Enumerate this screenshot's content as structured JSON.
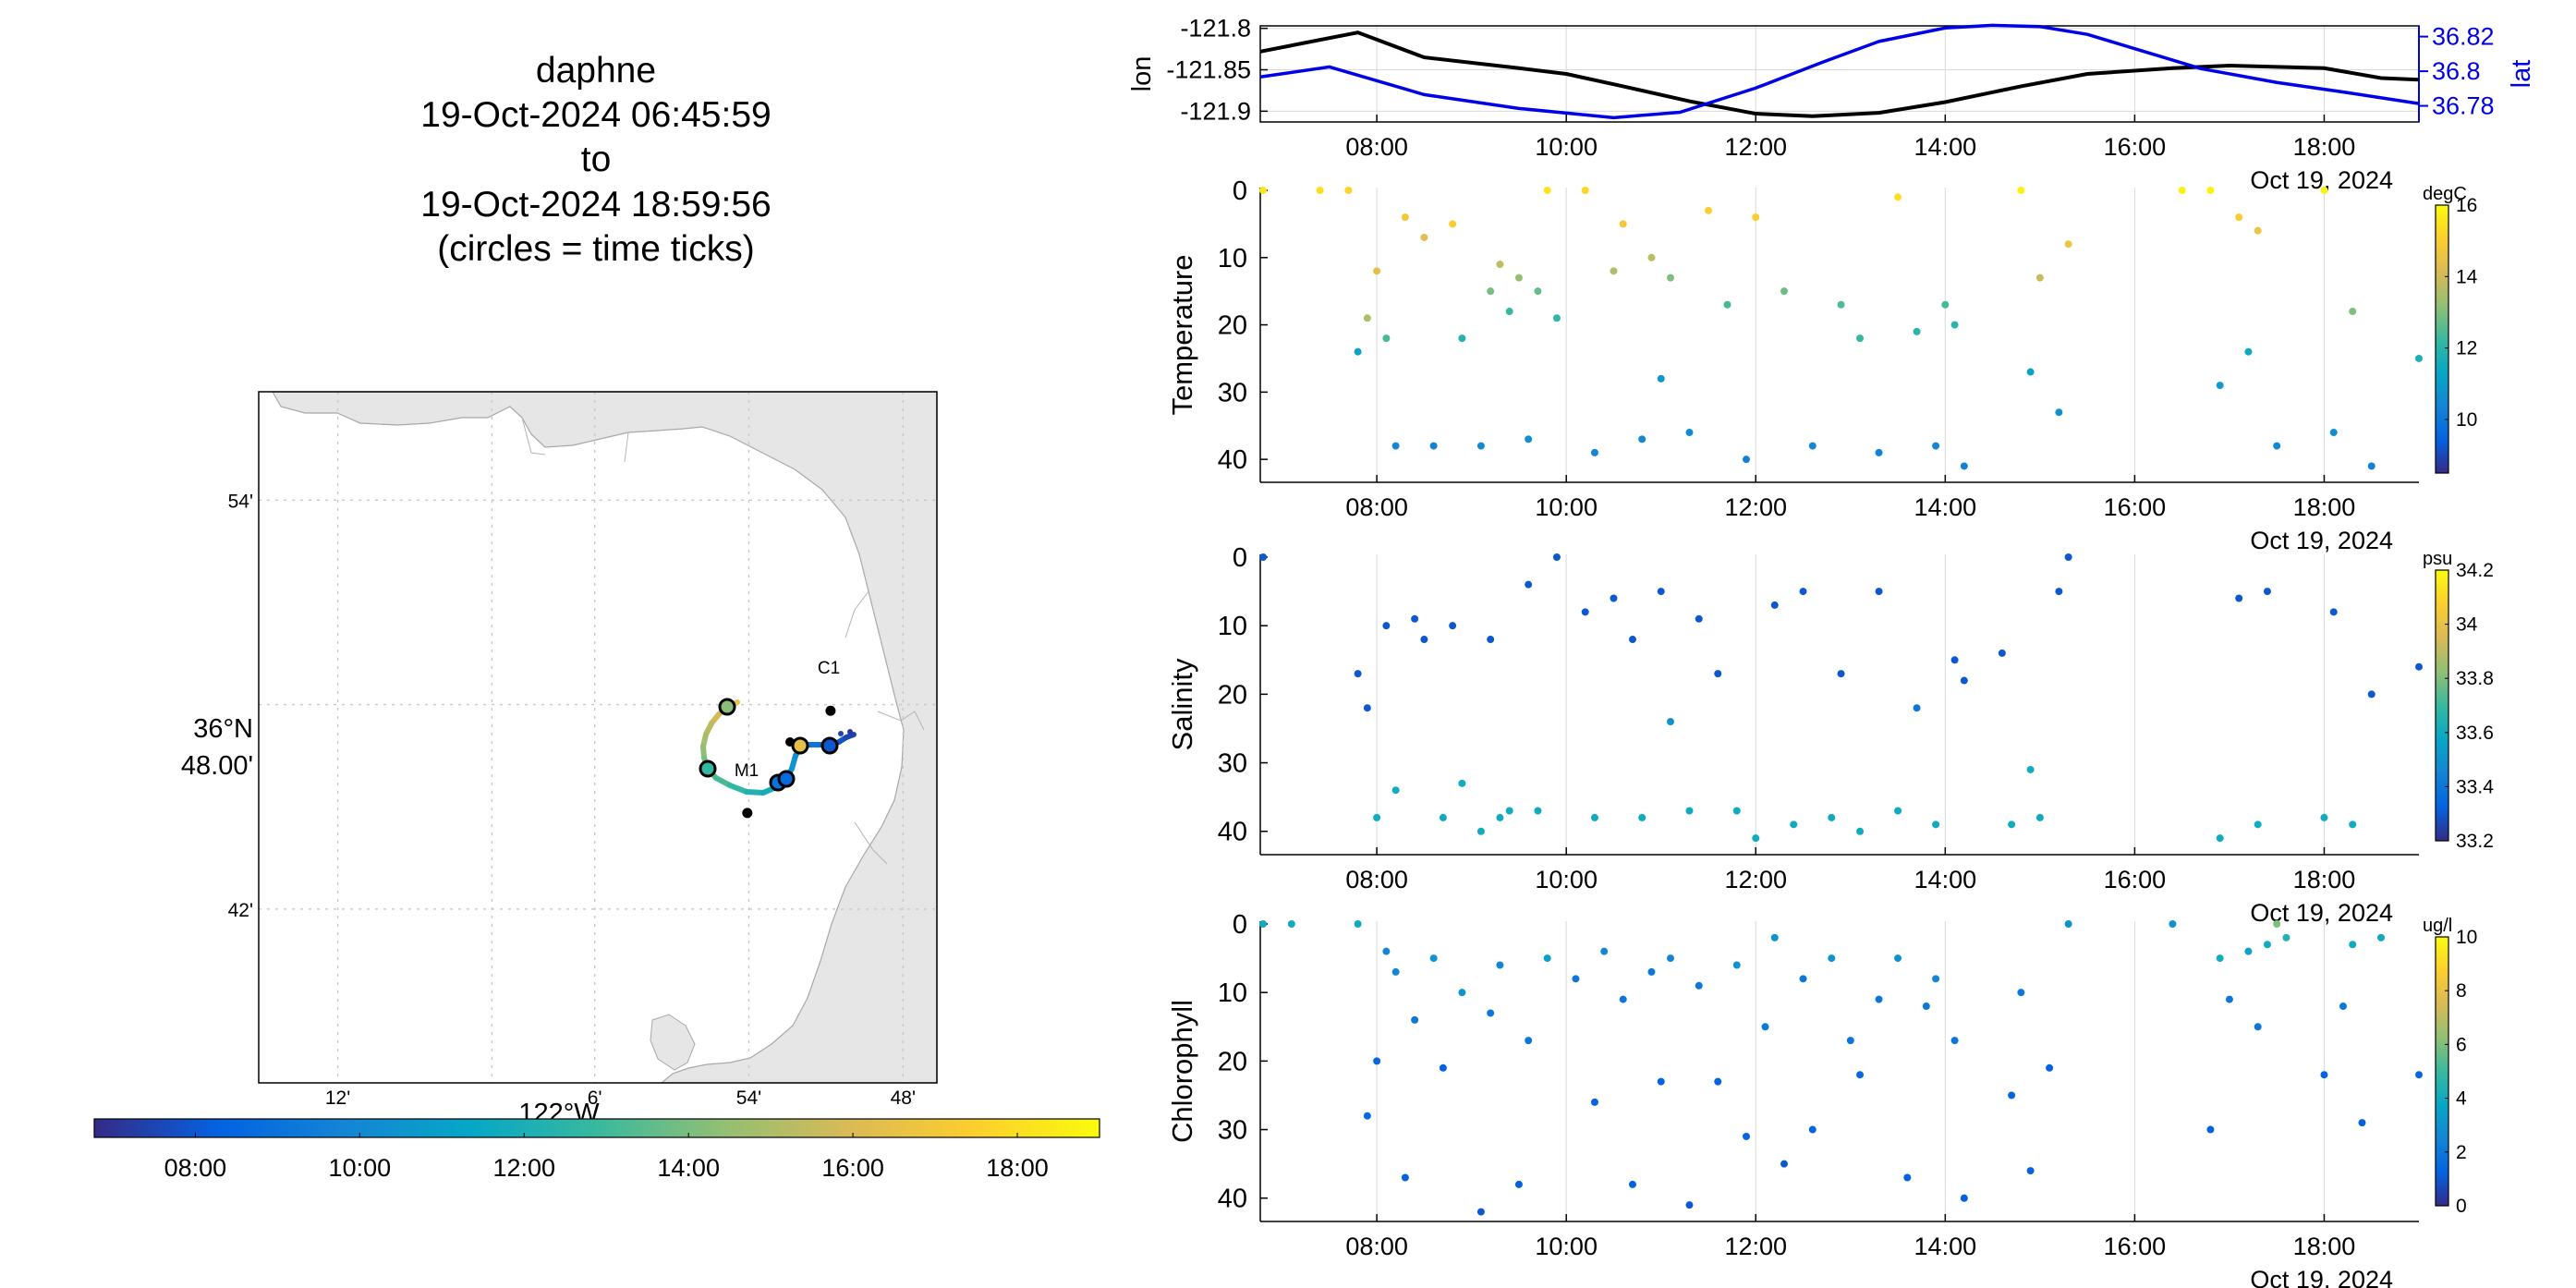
{
  "title": {
    "platform": "daphne",
    "start": "19-Oct-2024 06:45:59",
    "to": "to",
    "end": "19-Oct-2024 18:59:56",
    "note": "(circles = time ticks)"
  },
  "colors": {
    "lon_line": "#000000",
    "lat_line": "#0000e6",
    "land": "#e6e6e6",
    "grid": "#c8c8c8",
    "parula": [
      "#352a87",
      "#0363e1",
      "#1485d4",
      "#06a7c6",
      "#38b99e",
      "#92bf73",
      "#d9ba56",
      "#fcce2e",
      "#f9fb0e"
    ]
  },
  "chart_data": [
    {
      "type": "line",
      "name": "position",
      "xlabel": "Oct 19, 2024",
      "xticks": [
        "08:00",
        "10:00",
        "12:00",
        "14:00",
        "16:00",
        "18:00"
      ],
      "ylabel": "lon",
      "ylabel_right": "lat",
      "yticks_left": [
        "-121.8",
        "-121.85",
        "-121.9"
      ],
      "yticks_right": [
        "36.82",
        "36.8",
        "36.78"
      ],
      "x_range_hours": [
        6.77,
        19.0
      ],
      "ylim_left": [
        -121.913,
        -121.797
      ],
      "ylim_right": [
        36.7707,
        36.8262
      ],
      "series": [
        {
          "name": "lon",
          "x": [
            6.77,
            7.8,
            8.5,
            9.5,
            10.0,
            10.6,
            11.3,
            12.0,
            12.6,
            13.3,
            14.0,
            14.8,
            15.5,
            16.4,
            17.0,
            18.0,
            18.6,
            19.0
          ],
          "y": [
            -121.828,
            -121.805,
            -121.835,
            -121.848,
            -121.855,
            -121.87,
            -121.888,
            -121.903,
            -121.906,
            -121.902,
            -121.889,
            -121.87,
            -121.855,
            -121.848,
            -121.845,
            -121.848,
            -121.86,
            -121.862
          ]
        },
        {
          "name": "lat",
          "x": [
            6.77,
            7.5,
            8.5,
            9.5,
            10.5,
            11.2,
            12.0,
            12.7,
            13.3,
            14.0,
            14.5,
            15.0,
            15.5,
            16.0,
            16.7,
            17.5,
            18.3,
            19.0
          ],
          "y": [
            36.7967,
            36.8025,
            36.7865,
            36.7785,
            36.7732,
            36.7763,
            36.7903,
            36.8051,
            36.8172,
            36.825,
            36.8265,
            36.8258,
            36.8213,
            36.813,
            36.8015,
            36.7935,
            36.7872,
            36.7813
          ]
        }
      ]
    },
    {
      "type": "scatter",
      "name": "temperature",
      "ylabel": "Temperature",
      "xlabel": "Oct 19, 2024",
      "xticks": [
        "08:00",
        "10:00",
        "12:00",
        "14:00",
        "16:00",
        "18:00"
      ],
      "yticks": [
        "0",
        "10",
        "20",
        "30",
        "40"
      ],
      "ylim": [
        0,
        43
      ],
      "colorbar": {
        "unit": "degC",
        "ticks": [
          "10",
          "12",
          "14",
          "16"
        ],
        "range": [
          8.5,
          16
        ]
      },
      "x": [
        6.8,
        7.4,
        7.7,
        7.8,
        7.9,
        8.0,
        8.1,
        8.2,
        8.3,
        8.5,
        8.6,
        8.8,
        8.9,
        9.1,
        9.2,
        9.3,
        9.4,
        9.5,
        9.6,
        9.7,
        9.8,
        9.9,
        10.2,
        10.3,
        10.5,
        10.6,
        10.8,
        10.9,
        11.0,
        11.1,
        11.3,
        11.5,
        11.7,
        11.9,
        12.0,
        12.3,
        12.6,
        12.9,
        13.1,
        13.3,
        13.5,
        13.7,
        13.9,
        14.0,
        14.1,
        14.2,
        14.8,
        14.9,
        15.0,
        15.2,
        15.3,
        16.5,
        16.8,
        16.9,
        17.1,
        17.2,
        17.3,
        17.5,
        18.0,
        18.1,
        18.3,
        18.5,
        19.0
      ],
      "y": [
        0,
        0,
        0,
        24,
        19,
        12,
        22,
        38,
        4,
        7,
        38,
        5,
        22,
        38,
        15,
        11,
        18,
        13,
        37,
        15,
        0,
        19,
        0,
        39,
        12,
        5,
        37,
        10,
        28,
        13,
        36,
        3,
        17,
        40,
        4,
        15,
        38,
        17,
        22,
        39,
        1,
        21,
        38,
        17,
        20,
        41,
        0,
        27,
        13,
        33,
        8,
        0,
        0,
        29,
        4,
        24,
        6,
        38,
        0,
        36,
        18,
        41,
        25
      ],
      "v": [
        15.6,
        15.4,
        15.2,
        11.2,
        13.5,
        14.4,
        12.4,
        10.4,
        14.8,
        14.3,
        10.3,
        14.9,
        11.9,
        10.5,
        12.9,
        13.8,
        12.2,
        13.2,
        10.6,
        12.7,
        15.5,
        12.1,
        15.2,
        10.4,
        13.6,
        14.8,
        10.4,
        13.7,
        10.9,
        13.0,
        10.5,
        15.0,
        12.4,
        10.3,
        15.0,
        12.8,
        10.4,
        12.5,
        12.2,
        10.3,
        15.4,
        12.0,
        10.4,
        12.4,
        12.0,
        10.3,
        15.8,
        11.2,
        13.9,
        10.7,
        14.6,
        15.8,
        15.8,
        11.0,
        15.0,
        11.4,
        14.6,
        10.5,
        15.8,
        10.6,
        13.0,
        10.3,
        11.7
      ]
    },
    {
      "type": "scatter",
      "name": "salinity",
      "ylabel": "Salinity",
      "xlabel": "Oct 19, 2024",
      "xticks": [
        "08:00",
        "10:00",
        "12:00",
        "14:00",
        "16:00",
        "18:00"
      ],
      "yticks": [
        "0",
        "10",
        "20",
        "30",
        "40"
      ],
      "ylim": [
        0,
        43
      ],
      "colorbar": {
        "unit": "psu",
        "ticks": [
          "33.2",
          "33.4",
          "33.6",
          "33.8",
          "34",
          "34.2"
        ],
        "range": [
          33.2,
          34.2
        ]
      },
      "x": [
        6.8,
        7.8,
        7.9,
        8.0,
        8.1,
        8.2,
        8.4,
        8.5,
        8.7,
        8.8,
        8.9,
        9.1,
        9.2,
        9.3,
        9.4,
        9.6,
        9.7,
        9.9,
        10.2,
        10.3,
        10.5,
        10.7,
        10.8,
        11.0,
        11.1,
        11.3,
        11.4,
        11.6,
        11.8,
        12.0,
        12.2,
        12.4,
        12.5,
        12.8,
        12.9,
        13.1,
        13.3,
        13.5,
        13.7,
        13.9,
        14.1,
        14.2,
        14.6,
        14.7,
        14.9,
        15.0,
        15.2,
        15.3,
        16.9,
        17.1,
        17.3,
        17.4,
        18.0,
        18.1,
        18.3,
        18.5,
        19.0
      ],
      "y": [
        0,
        17,
        22,
        38,
        10,
        34,
        9,
        12,
        38,
        10,
        33,
        40,
        12,
        38,
        37,
        4,
        37,
        0,
        8,
        38,
        6,
        12,
        38,
        5,
        24,
        37,
        9,
        17,
        37,
        41,
        7,
        39,
        5,
        38,
        17,
        40,
        5,
        37,
        22,
        39,
        15,
        18,
        14,
        39,
        31,
        38,
        5,
        0,
        41,
        6,
        39,
        5,
        38,
        8,
        39,
        20,
        16
      ],
      "v": [
        33.3,
        33.3,
        33.3,
        33.6,
        33.3,
        33.6,
        33.3,
        33.3,
        33.6,
        33.3,
        33.6,
        33.6,
        33.3,
        33.6,
        33.6,
        33.3,
        33.6,
        33.3,
        33.3,
        33.6,
        33.3,
        33.3,
        33.6,
        33.3,
        33.5,
        33.6,
        33.3,
        33.3,
        33.6,
        33.6,
        33.3,
        33.6,
        33.3,
        33.6,
        33.3,
        33.6,
        33.3,
        33.6,
        33.4,
        33.6,
        33.3,
        33.3,
        33.3,
        33.6,
        33.6,
        33.6,
        33.3,
        33.3,
        33.6,
        33.3,
        33.6,
        33.3,
        33.6,
        33.3,
        33.6,
        33.3,
        33.3
      ]
    },
    {
      "type": "scatter",
      "name": "chlorophyll",
      "ylabel": "Chlorophyll",
      "xlabel": "Oct 19, 2024",
      "xticks": [
        "08:00",
        "10:00",
        "12:00",
        "14:00",
        "16:00",
        "18:00"
      ],
      "yticks": [
        "0",
        "10",
        "20",
        "30",
        "40"
      ],
      "ylim": [
        0,
        43
      ],
      "colorbar": {
        "unit": "ug/l",
        "ticks": [
          "0",
          "2",
          "4",
          "6",
          "8",
          "10"
        ],
        "range": [
          0,
          10
        ]
      },
      "x": [
        6.8,
        7.1,
        7.8,
        7.9,
        8.0,
        8.1,
        8.2,
        8.3,
        8.4,
        8.6,
        8.7,
        8.9,
        9.1,
        9.2,
        9.3,
        9.5,
        9.6,
        9.8,
        10.1,
        10.3,
        10.4,
        10.6,
        10.7,
        10.9,
        11.0,
        11.1,
        11.3,
        11.4,
        11.6,
        11.8,
        11.9,
        12.1,
        12.2,
        12.3,
        12.5,
        12.6,
        12.8,
        13.0,
        13.1,
        13.3,
        13.5,
        13.6,
        13.8,
        13.9,
        14.1,
        14.2,
        14.7,
        14.8,
        14.9,
        15.1,
        15.3,
        16.4,
        16.8,
        16.9,
        17.0,
        17.2,
        17.3,
        17.4,
        17.5,
        17.6,
        18.0,
        18.2,
        18.3,
        18.4,
        18.6,
        19.0
      ],
      "y": [
        0,
        0,
        0,
        28,
        20,
        4,
        7,
        37,
        14,
        5,
        21,
        10,
        42,
        13,
        6,
        38,
        17,
        5,
        8,
        26,
        4,
        11,
        38,
        7,
        23,
        5,
        41,
        9,
        23,
        6,
        31,
        15,
        2,
        35,
        8,
        30,
        5,
        17,
        22,
        11,
        5,
        37,
        12,
        8,
        17,
        40,
        25,
        10,
        36,
        21,
        0,
        0,
        30,
        5,
        11,
        4,
        15,
        3,
        0,
        2,
        22,
        12,
        3,
        29,
        2,
        22
      ],
      "v": [
        4,
        4,
        4,
        1.5,
        1.5,
        2.5,
        2.5,
        1.2,
        2,
        3,
        1.3,
        3,
        1,
        2,
        2.5,
        1.2,
        2,
        3.5,
        2,
        1.3,
        2.5,
        2,
        1.2,
        2,
        1.3,
        2.5,
        1,
        2,
        1.3,
        3,
        1.3,
        2,
        3,
        1,
        2,
        1.3,
        3,
        2,
        1.5,
        2,
        3,
        1.2,
        2,
        2.5,
        2,
        1.2,
        1.3,
        2,
        1.2,
        1.3,
        3,
        3,
        1.2,
        4,
        2,
        3.5,
        2,
        4,
        6,
        4.5,
        1.3,
        2,
        4,
        1.2,
        4,
        1.5
      ]
    }
  ],
  "map": {
    "lat_ticks": [
      "54'",
      "42'"
    ],
    "lat_center_label": "36°N",
    "lat_center_minutes": "48.00'",
    "lon_ticks": [
      "12'",
      "6'",
      "54'",
      "48'"
    ],
    "lon_center_label": "122°W",
    "stations": [
      {
        "name": "M1",
        "lat": 36.747,
        "lon": -121.901
      },
      {
        "name": "C1",
        "lat": 36.797,
        "lon": -121.847
      }
    ],
    "colorbar_ticks": [
      "08:00",
      "10:00",
      "12:00",
      "14:00",
      "16:00",
      "18:00"
    ],
    "colorbar_range_hours": [
      6.77,
      19.0
    ]
  }
}
